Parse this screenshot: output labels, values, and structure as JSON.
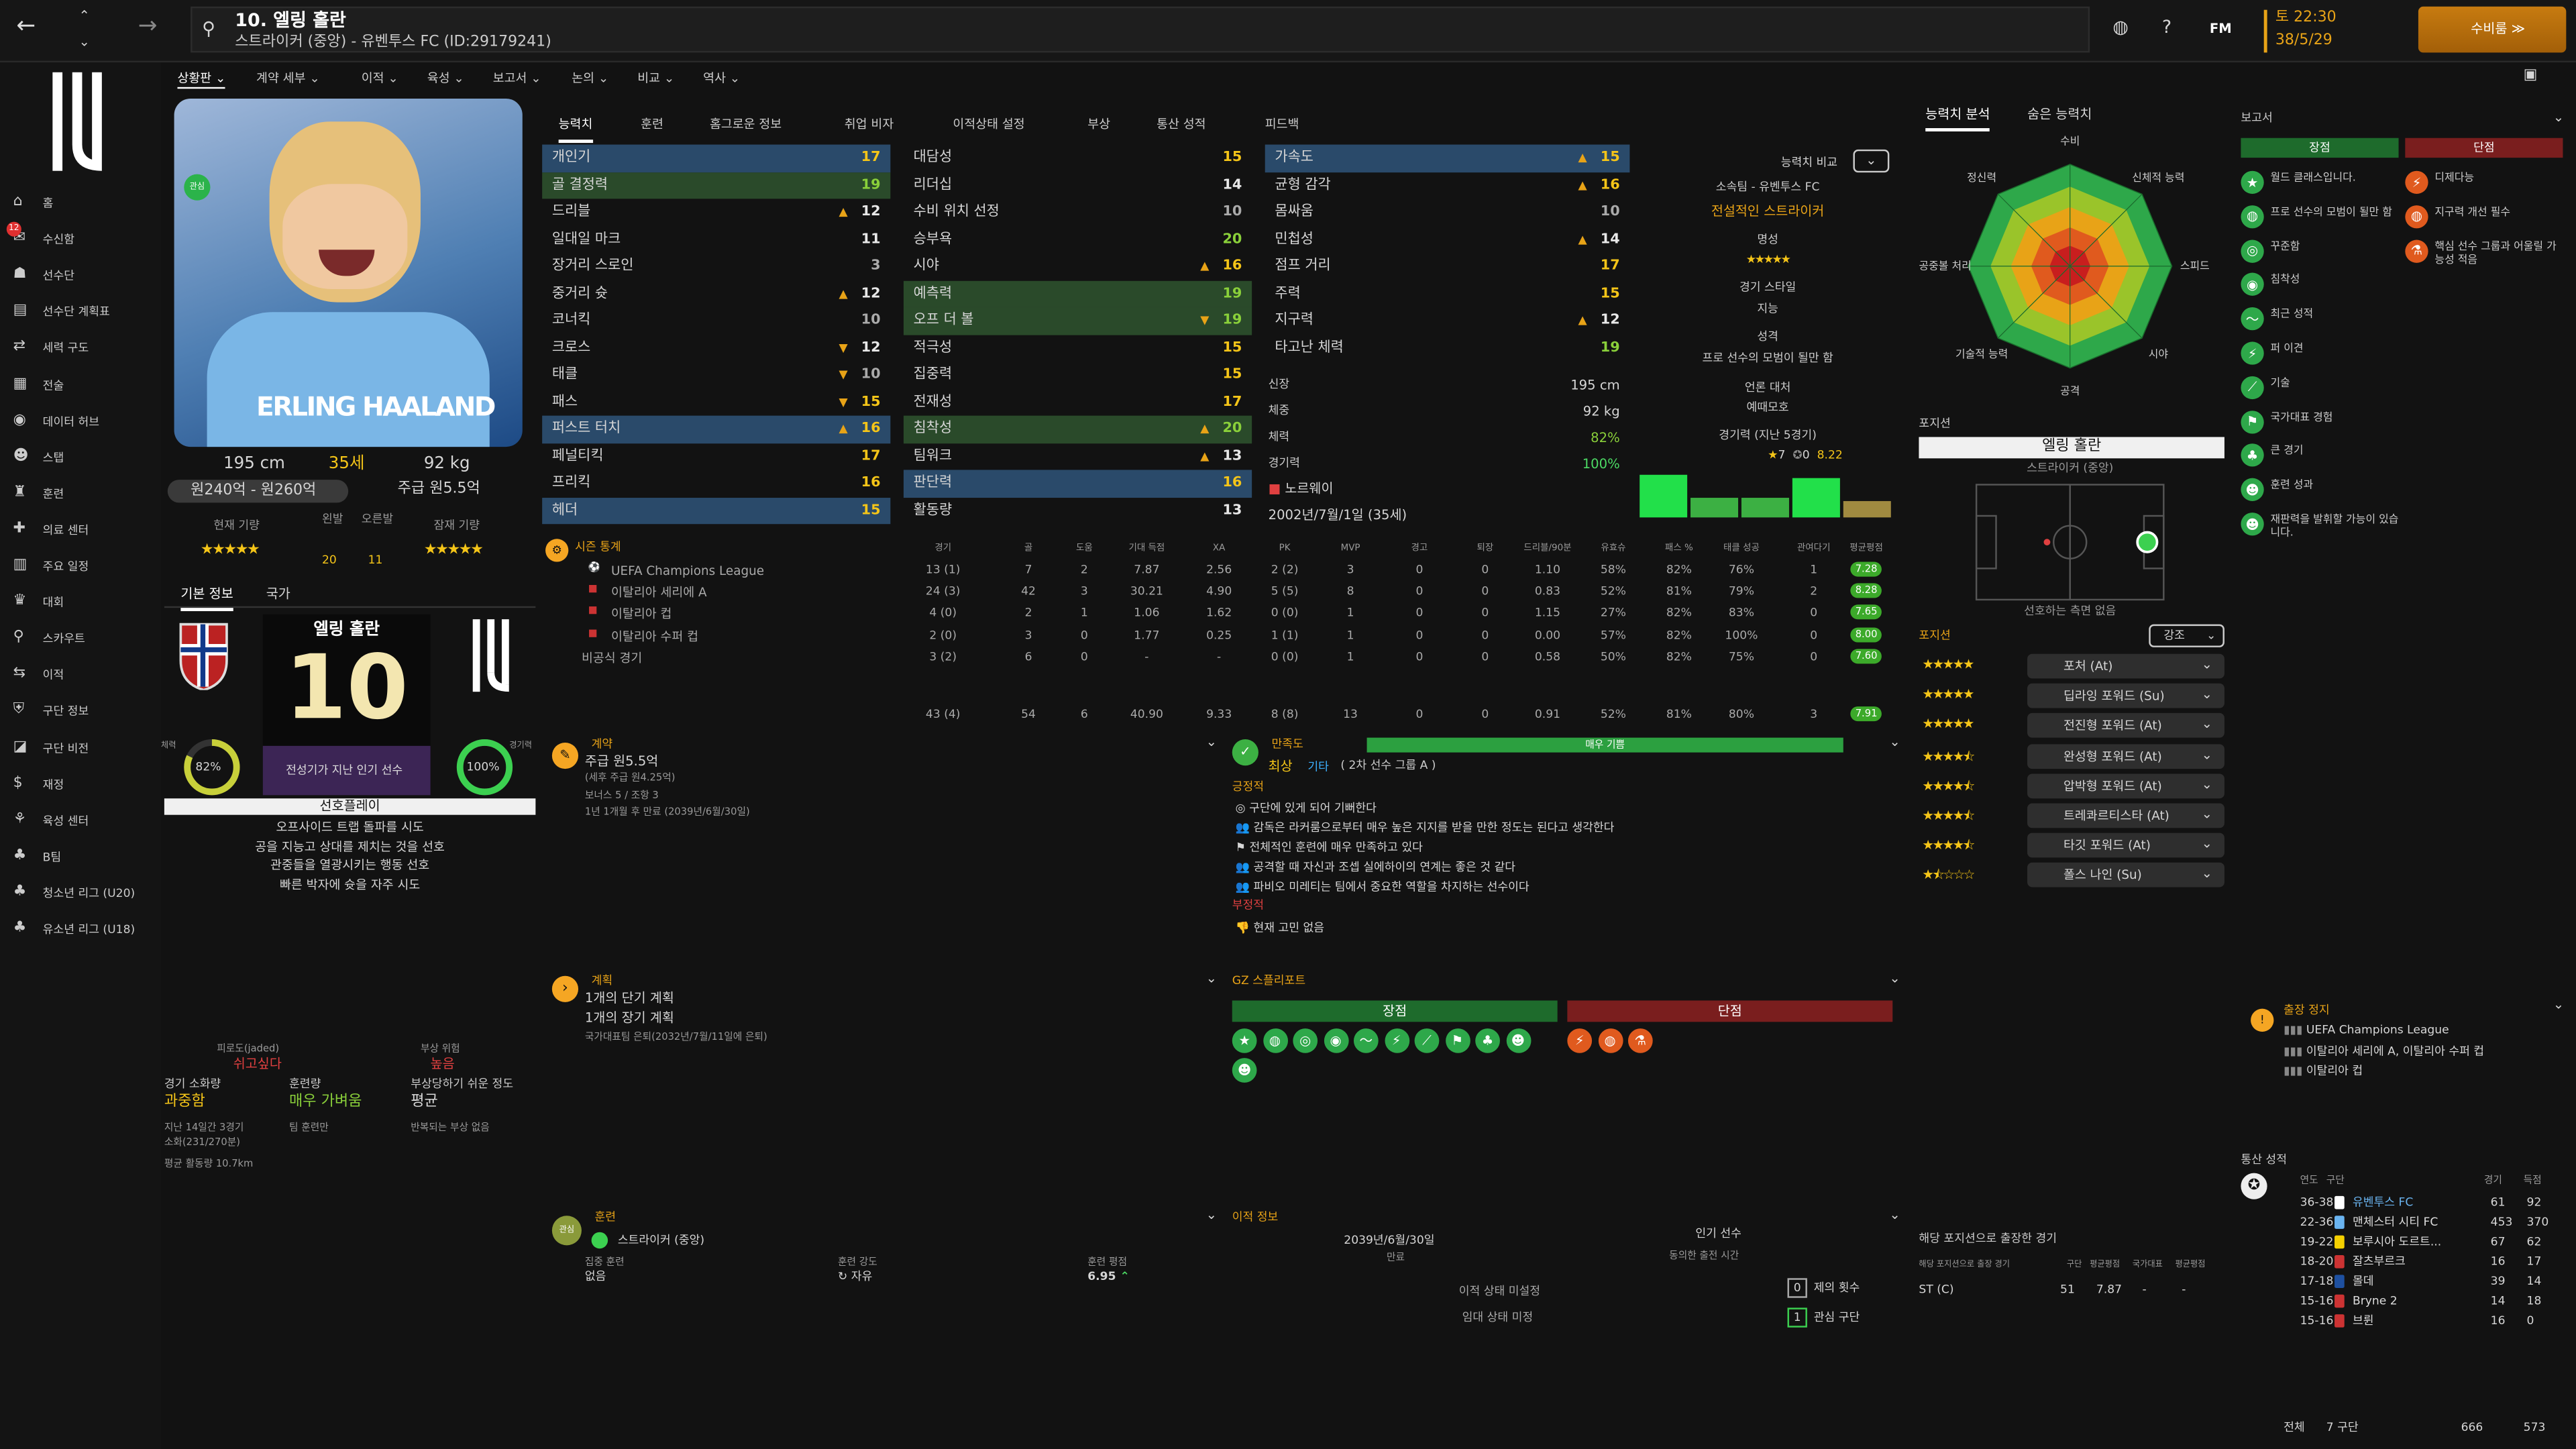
{
  "header": {
    "player_name": "10. 엘링 홀란",
    "subtitle": "스트라이커 (중앙) - 유벤투스 FC (ID:29179241)",
    "time": "토 22:30",
    "date": "38/5/29",
    "continue_label": "수비룸 ≫",
    "fm_label": "FM"
  },
  "sidebar": {
    "items": [
      "홈",
      "수신함",
      "선수단",
      "선수단 계획표",
      "세력 구도",
      "전술",
      "데이터 허브",
      "스탭",
      "훈련",
      "의료 센터",
      "주요 일정",
      "대회",
      "스카우트",
      "이적",
      "구단 정보",
      "구단 비전",
      "재정",
      "육성 센터",
      "B팀",
      "청소년 리그 (U20)",
      "유소년 리그 (U18)"
    ],
    "inbox_badge": "12"
  },
  "subnav": [
    "상황판",
    "계약 세부",
    "이적",
    "육성",
    "보고서",
    "논의",
    "비교",
    "역사"
  ],
  "tabs": [
    "능력치",
    "훈련",
    "홈그로운 정보",
    "취업 비자",
    "이적상태 설정",
    "부상",
    "통산 성적",
    "피드백"
  ],
  "profile": {
    "height": "195 cm",
    "age": "35세",
    "weight": "92 kg",
    "value": "원240억 - 원260억",
    "wage": "주급 원5.5억",
    "current_ability": "현재 기량",
    "potential_ability": "잠재 기량",
    "left_foot": "왼발",
    "right_foot": "오른발",
    "left_foot_val": "20",
    "right_foot_val": "11",
    "kit_name": "ERLING HAALAND",
    "badge": "관심",
    "shirt_name": "엘링 홀란",
    "shirt_number": "10",
    "nat_tab": "기본 정보",
    "nat_tab2": "국가",
    "fitness_label": "체력",
    "fitness": "82%",
    "sharp_label": "경기력",
    "sharpness": "100%",
    "role_text": "전성기가 지난 인기 선수",
    "playstyle_title": "선호플레이",
    "playstyles": [
      "오프사이드 트랩 돌파를 시도",
      "공을 지능고 상대를 제치는 것을 선호",
      "관중들을 열광시키는 행동 선호",
      "빠른 박자에 슛을 자주 시도"
    ],
    "injury_head": "피로도(jaded)",
    "injury_val": "쉬고싶다",
    "risk_head": "부상 위험",
    "risk_val": "높음",
    "cond_l1": "경기 소화량",
    "cond_v1": "과중함",
    "cond_l2": "훈련량",
    "cond_v2": "매우 가벼움",
    "cond_l3": "부상당하기 쉬운 정도",
    "cond_v3": "평균",
    "cond_n1": "지난 14일간 3경기",
    "cond_n2": "소화(231/270분)",
    "cond_n3": "팀 훈련만",
    "cond_n4": "반복되는 부상 없음",
    "cond_n5": "평균 활동량 10.7km"
  },
  "attrs_tech": [
    [
      "개인기",
      "17",
      ""
    ],
    [
      "골 결정력",
      "19",
      ""
    ],
    [
      "드리블",
      "12",
      "▲"
    ],
    [
      "일대일 마크",
      "11",
      ""
    ],
    [
      "장거리 스로인",
      "3",
      ""
    ],
    [
      "중거리 슛",
      "12",
      "▲"
    ],
    [
      "코너킥",
      "10",
      ""
    ],
    [
      "크로스",
      "12",
      "▼"
    ],
    [
      "태클",
      "10",
      "▼"
    ],
    [
      "패스",
      "15",
      "▼"
    ],
    [
      "퍼스트 터치",
      "16",
      "▲"
    ],
    [
      "페널티킥",
      "17",
      ""
    ],
    [
      "프리킥",
      "16",
      ""
    ],
    [
      "헤더",
      "15",
      ""
    ]
  ],
  "attrs_ment": [
    [
      "대담성",
      "15",
      ""
    ],
    [
      "리더십",
      "14",
      ""
    ],
    [
      "수비 위치 선정",
      "10",
      ""
    ],
    [
      "승부욕",
      "20",
      ""
    ],
    [
      "시야",
      "16",
      "▲"
    ],
    [
      "예측력",
      "19",
      ""
    ],
    [
      "오프 더 볼",
      "19",
      "▼"
    ],
    [
      "적극성",
      "15",
      ""
    ],
    [
      "집중력",
      "15",
      ""
    ],
    [
      "전재성",
      "17",
      ""
    ],
    [
      "침착성",
      "20",
      "▲"
    ],
    [
      "팀워크",
      "13",
      "▲"
    ],
    [
      "판단력",
      "16",
      ""
    ],
    [
      "활동량",
      "13",
      ""
    ]
  ],
  "attrs_phys": [
    [
      "가속도",
      "15",
      "▲"
    ],
    [
      "균형 감각",
      "16",
      "▲"
    ],
    [
      "몸싸움",
      "10",
      ""
    ],
    [
      "민첩성",
      "14",
      "▲"
    ],
    [
      "점프 거리",
      "17",
      ""
    ],
    [
      "주력",
      "15",
      ""
    ],
    [
      "지구력",
      "12",
      "▲"
    ],
    [
      "타고난 체력",
      "19",
      ""
    ]
  ],
  "bio": {
    "height_l": "신장",
    "height": "195 cm",
    "weight_l": "체중",
    "weight": "92 kg",
    "fit_l": "체력",
    "fit": "82%",
    "sharp_l": "경기력",
    "sharp": "100%",
    "nation": "노르웨이",
    "dob": "2002년/7월/1일 (35세)"
  },
  "compare": {
    "label": "능력치 비교",
    "club": "소속팀 - 유벤투스 FC",
    "role": "전설적인 스트라이커",
    "rep_l": "명성",
    "style_l": "경기 스타일",
    "style": "지능",
    "pers_l": "성격",
    "pers": "프로 선수의 모범이 될만 함",
    "media_l": "언론 대처",
    "media": "예때모호",
    "form_l": "경기력 (지난 5경기)",
    "form_r1": "7",
    "form_r2": "0",
    "form_avg": "8.22"
  },
  "radar": {
    "tab1": "능력치 분석",
    "tab2": "숨은 능력치",
    "labels": [
      "수비",
      "신체적 능력",
      "스피드",
      "시야",
      "공격",
      "기술적 능력",
      "공중볼 처리",
      "정신력"
    ]
  },
  "pos": {
    "title": "포지션",
    "name": "엘링 홀란",
    "sub": "스트라이커 (중앙)",
    "note": "선호하는 측면 없음",
    "list_title": "포지션",
    "strength": "강조",
    "roles": [
      [
        "포처 (At)",
        "5"
      ],
      [
        "딥라잉 포워드 (Su)",
        "5"
      ],
      [
        "전진형 포워드 (At)",
        "5"
      ],
      [
        "완성형 포워드 (At)",
        "4.5"
      ],
      [
        "압박형 포워드 (At)",
        "4.5"
      ],
      [
        "트레콰르티스타 (At)",
        "4.5"
      ],
      [
        "타깃 포워드 (At)",
        "4.5"
      ],
      [
        "폴스 나인 (Su)",
        "1.5"
      ]
    ]
  },
  "report": {
    "title": "보고서",
    "pros_h": "장점",
    "cons_h": "단점",
    "pros": [
      "월드 클래스입니다.",
      "프로 선수의 모범이 될만 함",
      "꾸준함",
      "침착성",
      "최근 성적",
      "퍼 이견",
      "기술",
      "국가대표 경험",
      "큰 경기",
      "훈련 성과",
      "재판력을 발휘할 가능이 있습니다."
    ],
    "cons": [
      "디제다능",
      "지구력 개선 필수",
      "핵심 선수 그룹과 어울릴 가능성 적음"
    ],
    "susp_title": "출장 정지",
    "susp": [
      "UEFA Champions League",
      "이탈리아 세리에 A, 이탈리아 수퍼 컵",
      "이탈리아 컵"
    ]
  },
  "history": {
    "title": "통산 성적",
    "cols": [
      "연도",
      "구단",
      "경기",
      "득점"
    ],
    "rows": [
      [
        "36-38",
        "유벤투스 FC",
        "61",
        "92"
      ],
      [
        "22-36",
        "맨체스터 시티 FC",
        "453",
        "370"
      ],
      [
        "19-22",
        "보루시아 도르트...",
        "67",
        "62"
      ],
      [
        "18-20",
        "잘츠부르크",
        "16",
        "17"
      ],
      [
        "17-18",
        "몰데",
        "39",
        "14"
      ],
      [
        "15-16",
        "Bryne 2",
        "14",
        "18"
      ],
      [
        "15-16",
        "브륀",
        "16",
        "0"
      ]
    ],
    "total_l": "전체",
    "total_clubs": "7 구단",
    "total_apps": "666",
    "total_goals": "573"
  },
  "stats": {
    "title": "시즌 통계",
    "cols": [
      "경기",
      "골",
      "도움",
      "기대 득점",
      "XA",
      "PK",
      "MVP",
      "경고",
      "퇴장",
      "드리블/90분",
      "유효슈",
      "패스 %",
      "태클 성공",
      "관여다기",
      "평균평점"
    ],
    "rows": [
      [
        "UEFA Champions League",
        "13 (1)",
        "7",
        "2",
        "7.87",
        "2.56",
        "2 (2)",
        "3",
        "0",
        "0",
        "1.10",
        "58%",
        "82%",
        "76%",
        "1",
        "7.28"
      ],
      [
        "이탈리아 세리에 A",
        "24 (3)",
        "42",
        "3",
        "30.21",
        "4.90",
        "5 (5)",
        "8",
        "0",
        "0",
        "0.83",
        "52%",
        "81%",
        "79%",
        "2",
        "8.28"
      ],
      [
        "이탈리아 컵",
        "4 (0)",
        "2",
        "1",
        "1.06",
        "1.62",
        "0 (0)",
        "1",
        "0",
        "0",
        "1.15",
        "27%",
        "82%",
        "83%",
        "0",
        "7.65"
      ],
      [
        "이탈리아 수퍼 컵",
        "2 (0)",
        "3",
        "0",
        "1.77",
        "0.25",
        "1 (1)",
        "1",
        "0",
        "0",
        "0.00",
        "57%",
        "82%",
        "100%",
        "0",
        "8.00"
      ],
      [
        "비공식 경기",
        "3 (2)",
        "6",
        "0",
        "-",
        "-",
        "0 (0)",
        "1",
        "0",
        "0",
        "0.58",
        "50%",
        "82%",
        "75%",
        "0",
        "7.60"
      ]
    ],
    "total": [
      "43 (4)",
      "54",
      "6",
      "40.90",
      "9.33",
      "8 (8)",
      "13",
      "0",
      "0",
      "0.91",
      "52%",
      "81%",
      "80%",
      "3",
      "7.91"
    ]
  },
  "contract": {
    "title": "계약",
    "wage": "주급 원5.5억",
    "wage_note": "(세후 주급 원4.25억)",
    "bonus": "보너스 5 / 조항 3",
    "expiry": "1년 1개월 후 만료 (2039년/6월/30일)"
  },
  "happy": {
    "title": "만족도",
    "bar": "매우 기쁨",
    "status": "최상",
    "group": "기타",
    "group_note": "( 2차 선수 그룹 A )",
    "pos_h": "긍정적",
    "items": [
      "구단에 있게 되어 기뻐한다",
      "감독은 라커룸으로부터 매우 높은 지지를 받을 만한 정도는 된다고 생각한다",
      "전체적인 훈련에 매우 만족하고 있다",
      "공격할 때 자신과 조셉 실에하이의 연계는 좋은 것 같다",
      "파비오 미레티는 팀에서 중요한 역할을 차지하는 선수이다"
    ],
    "neg_h": "부정적",
    "neg": "현재 고민 없음"
  },
  "plans": {
    "title": "계획",
    "l1": "1개의 단기 계획",
    "l2": "1개의 장기 계획",
    "l3": "국가대표팀 은퇴(2032년/7월/11일에 은퇴)"
  },
  "gz": {
    "title": "GZ 스플리포트",
    "pros": "장점",
    "cons": "단점"
  },
  "training": {
    "title": "훈련",
    "role": "스트라이커 (중앙)",
    "badge": "관심",
    "l1": "집중 훈련",
    "v1": "없음",
    "l2": "훈련 강도",
    "v2": "자유",
    "l3": "훈련 평점",
    "v3": "6.95"
  },
  "transfer": {
    "title": "이적 정보",
    "date": "2039년/6월/30일",
    "date_l": "만료",
    "status_l": "인기 선수",
    "status_sub": "동의한 출전 시간",
    "t1": "이적 상태 미설정",
    "t2": "임대 상태 미정",
    "n1": "0",
    "n1_l": "제의 횟수",
    "n2": "1",
    "n2_l": "관심 구단"
  },
  "played": {
    "title": "해당 포지션으로 출장한 경기",
    "sub": "해당 포지션으로 출장 경기",
    "c1": "구단",
    "c2": "평균평점",
    "c3": "국가대표",
    "c4": "평균평점",
    "pos": "ST (C)",
    "v1": "51",
    "v2": "7.87",
    "v3": "-",
    "v4": "-"
  },
  "colors": {
    "accent": "#f5a623",
    "green": "#3cb043",
    "red": "#b03030",
    "bg": "#121212"
  }
}
